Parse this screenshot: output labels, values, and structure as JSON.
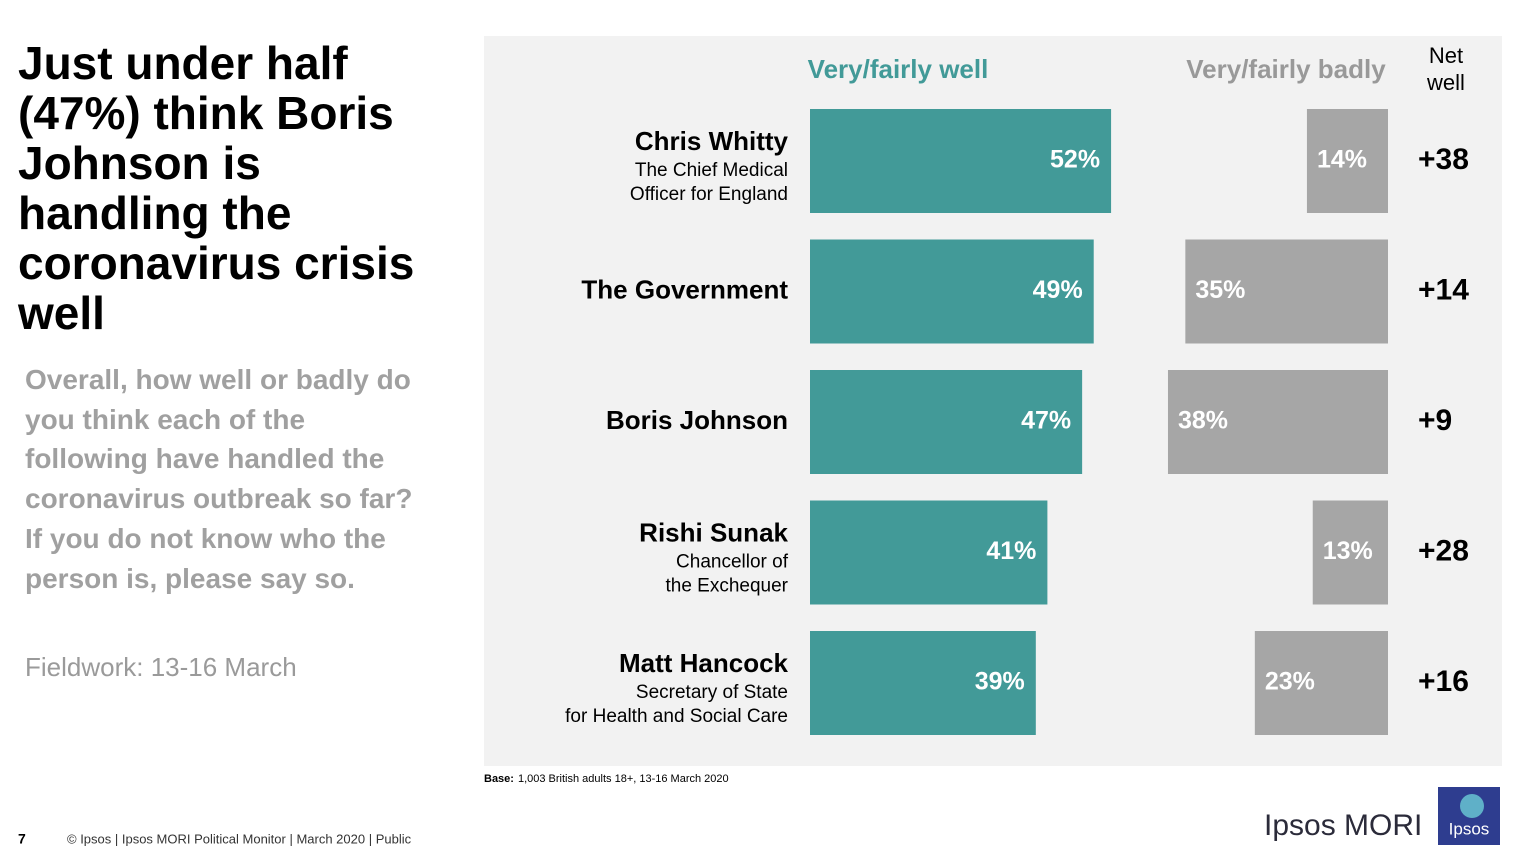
{
  "header": {
    "title": "Just under half (47%) think Boris Johnson is handling the coronavirus crisis well",
    "question": "Overall, how well or badly do you think each of the following have handled the coronavirus outbreak so far?  If you do not know who the person is, please say so.",
    "fieldwork": "Fieldwork: 13-16 March"
  },
  "chart_data": {
    "type": "bar",
    "orientation": "horizontal",
    "categories": [
      "Chris Whitty",
      "The Government",
      "Boris Johnson",
      "Rishi Sunak",
      "Matt Hancock"
    ],
    "category_descriptions": [
      [
        "The Chief Medical",
        "Officer for England"
      ],
      [],
      [],
      [
        "Chancellor of",
        "the Exchequer"
      ],
      [
        "Secretary of State",
        "for Health and Social Care"
      ]
    ],
    "series": [
      {
        "name": "Very/fairly well",
        "color": "#429a98",
        "values": [
          52,
          49,
          47,
          41,
          39
        ],
        "value_labels": [
          "52%",
          "49%",
          "47%",
          "41%",
          "39%"
        ]
      },
      {
        "name": "Very/fairly badly",
        "color": "#a6a6a6",
        "values": [
          14,
          35,
          38,
          13,
          23
        ],
        "value_labels": [
          "14%",
          "35%",
          "38%",
          "13%",
          "23%"
        ]
      }
    ],
    "net": {
      "name": [
        "Net",
        "well"
      ],
      "values": [
        38,
        14,
        9,
        28,
        16
      ],
      "value_labels": [
        "+38",
        "+14",
        "+9",
        "+28",
        "+16"
      ]
    },
    "base": {
      "label": "Base:",
      "text": "1,003 British adults 18+, 13-16 March 2020"
    }
  },
  "footer": {
    "page": "7",
    "source": "© Ipsos | Ipsos MORI Political Monitor | March 2020 | Public",
    "brand": "Ipsos MORI",
    "logo": "Ipsos"
  }
}
